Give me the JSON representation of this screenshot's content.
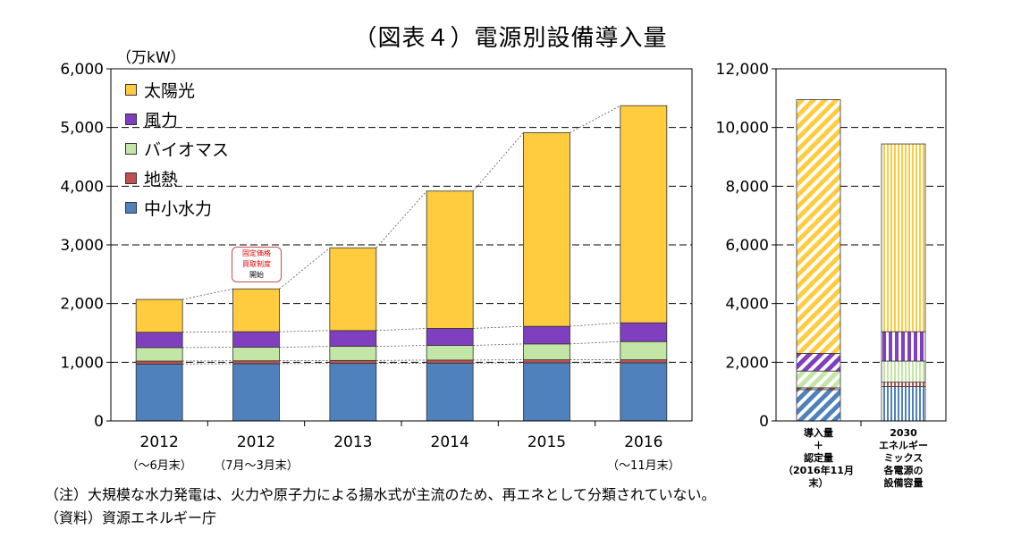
{
  "title": "（図表４）電源別設備導入量",
  "unit_label": "（万kW）",
  "colors": {
    "solar": "#FFCC40",
    "wind": "#7F3FBF",
    "biomass": "#C3E6A6",
    "geothermal": "#C0504D",
    "hydro": "#4F81BD"
  },
  "callout": {
    "line1": "固定価格",
    "line2": "買取制度",
    "line3": "開始"
  },
  "chart_data": [
    {
      "type": "bar",
      "stacked": true,
      "categories": [
        "2012",
        "2012",
        "2013",
        "2014",
        "2015",
        "2016"
      ],
      "category_sublabels": [
        "（～6月末）",
        "（7月～3月末）",
        "",
        "",
        "",
        "（～11月末）"
      ],
      "ylim": [
        0,
        6000
      ],
      "yticks": [
        0,
        1000,
        2000,
        3000,
        4000,
        5000,
        6000
      ],
      "ytick_labels": [
        "0",
        "1,000",
        "2,000",
        "3,000",
        "4,000",
        "5,000",
        "6,000"
      ],
      "legend_position": "top-left",
      "series": [
        {
          "name": "中小水力",
          "key": "hydro",
          "values": [
            970,
            975,
            980,
            985,
            990,
            990
          ]
        },
        {
          "name": "地熱",
          "key": "geothermal",
          "values": [
            50,
            50,
            50,
            52,
            52,
            52
          ]
        },
        {
          "name": "バイオマス",
          "key": "biomass",
          "values": [
            230,
            230,
            240,
            250,
            270,
            310
          ]
        },
        {
          "name": "風力",
          "key": "wind",
          "values": [
            260,
            265,
            270,
            290,
            300,
            320
          ]
        },
        {
          "name": "太陽光",
          "key": "solar",
          "values": [
            560,
            730,
            1410,
            2340,
            3300,
            3700
          ]
        }
      ],
      "totals": [
        2070,
        2250,
        2950,
        3917,
        4912,
        5372
      ]
    },
    {
      "type": "bar",
      "stacked": true,
      "pattern": "hatched",
      "categories": [
        "導入量\n＋\n認定量\n（2016年11月末）",
        "2030\nエネルギー\nミックス\n各電源の\n設備容量"
      ],
      "ylim": [
        0,
        12000
      ],
      "yticks": [
        0,
        2000,
        4000,
        6000,
        8000,
        10000,
        12000
      ],
      "ytick_labels": [
        "0",
        "2,000",
        "4,000",
        "6,000",
        "8,000",
        "10,000",
        "12,000"
      ],
      "series": [
        {
          "name": "中小水力",
          "key": "hydro",
          "values": [
            1070,
            1170
          ]
        },
        {
          "name": "地熱",
          "key": "geothermal",
          "values": [
            60,
            150
          ]
        },
        {
          "name": "バイオマス",
          "key": "biomass",
          "values": [
            570,
            720
          ]
        },
        {
          "name": "風力",
          "key": "wind",
          "values": [
            600,
            1000
          ]
        },
        {
          "name": "太陽光",
          "key": "solar",
          "values": [
            8650,
            6400
          ]
        }
      ]
    }
  ],
  "notes": {
    "note1": "（注）大規模な水力発電は、火力や原子力による揚水式が主流のため、再エネとして分類されていない。",
    "note2": "（資料）資源エネルギー庁"
  }
}
